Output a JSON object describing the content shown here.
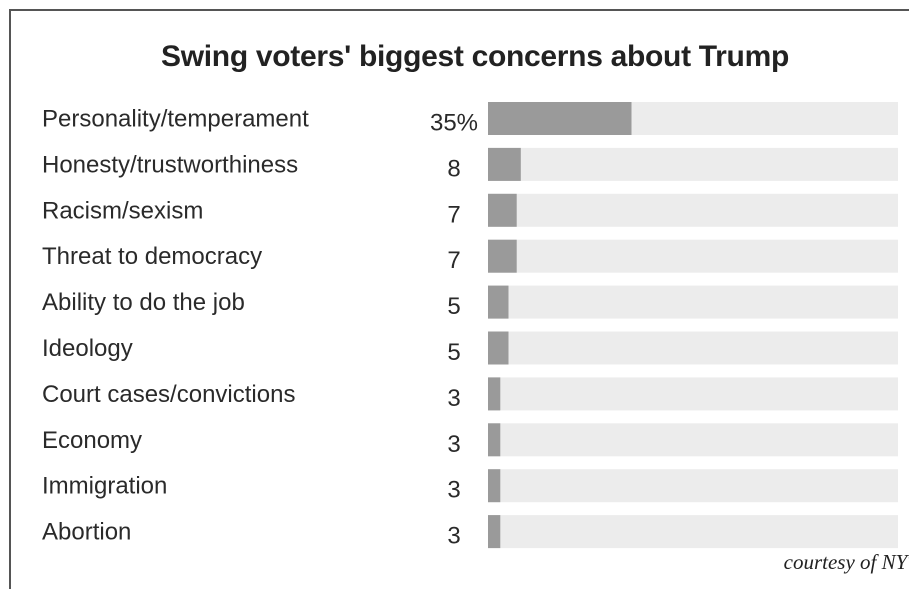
{
  "chart_data": {
    "type": "bar",
    "orientation": "horizontal",
    "title": "Swing voters' biggest concerns about Trump",
    "categories": [
      "Personality/temperament",
      "Honesty/trustworthiness",
      "Racism/sexism",
      "Threat to democracy",
      "Ability to do the job",
      "Ideology",
      "Court cases/convictions",
      "Economy",
      "Immigration",
      "Abortion"
    ],
    "values": [
      35,
      8,
      7,
      7,
      5,
      5,
      3,
      3,
      3,
      3
    ],
    "value_labels": [
      "35%",
      "8",
      "7",
      "7",
      "5",
      "5",
      "3",
      "3",
      "3",
      "3"
    ],
    "xlim": [
      0,
      100
    ],
    "grid": false,
    "legend": "none",
    "colors": {
      "bar": "#9a9a9a",
      "track": "#ececec",
      "text": "#2a2a2a"
    }
  },
  "credit": "courtesy of NYT"
}
